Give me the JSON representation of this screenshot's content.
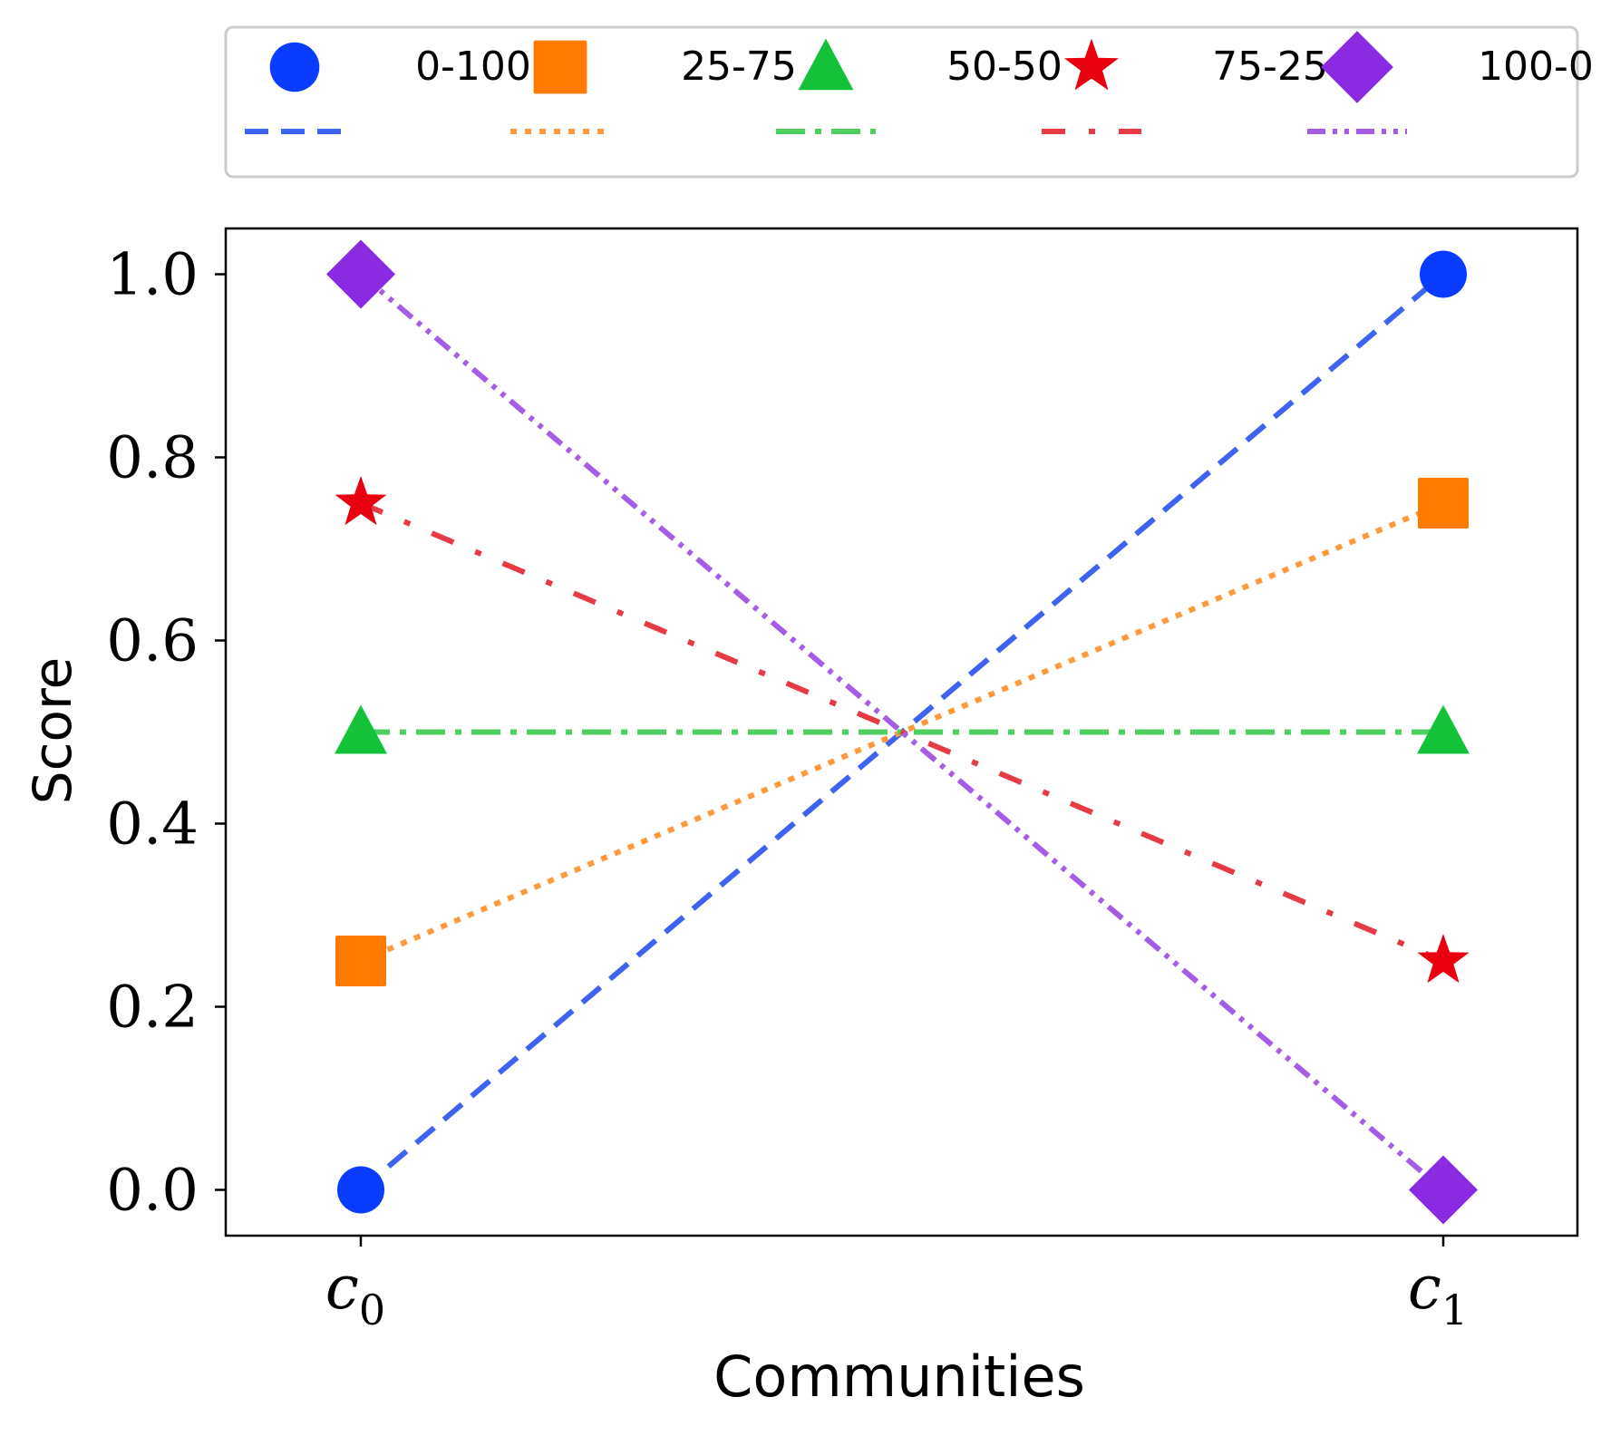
{
  "chart_data": {
    "type": "line",
    "title": "",
    "xlabel": "Communities",
    "ylabel": "Score",
    "categories": [
      "c0",
      "c1"
    ],
    "x_ticks": [
      {
        "base": "c",
        "sub": "0"
      },
      {
        "base": "c",
        "sub": "1"
      }
    ],
    "ylim": [
      -0.05,
      1.05
    ],
    "yticks": [
      0.0,
      0.2,
      0.4,
      0.6,
      0.8,
      1.0
    ],
    "ytick_labels": [
      "0.0",
      "0.2",
      "0.4",
      "0.6",
      "0.8",
      "1.0"
    ],
    "grid": false,
    "legend_position": "top, outside plot, two rows",
    "series": [
      {
        "name": "0-100",
        "values": [
          0.0,
          1.0
        ],
        "marker": "circle",
        "marker_color": "#0a3cff",
        "line_color": "#3d63f0",
        "line_style": "dashed"
      },
      {
        "name": "25-75",
        "values": [
          0.25,
          0.75
        ],
        "marker": "square",
        "marker_color": "#ff7a00",
        "line_color": "#ff9a3c",
        "line_style": "dotted"
      },
      {
        "name": "50-50",
        "values": [
          0.5,
          0.5
        ],
        "marker": "triangle",
        "marker_color": "#14c23a",
        "line_color": "#4fcf62",
        "line_style": "dashdot"
      },
      {
        "name": "75-25",
        "values": [
          0.75,
          0.25
        ],
        "marker": "star",
        "marker_color": "#e8000e",
        "line_color": "#e63a45",
        "line_style": "loose-dashdot"
      },
      {
        "name": "100-0",
        "values": [
          1.0,
          0.0
        ],
        "marker": "diamond",
        "marker_color": "#8a2be2",
        "line_color": "#a45ee6",
        "line_style": "dashdotdot"
      }
    ]
  }
}
